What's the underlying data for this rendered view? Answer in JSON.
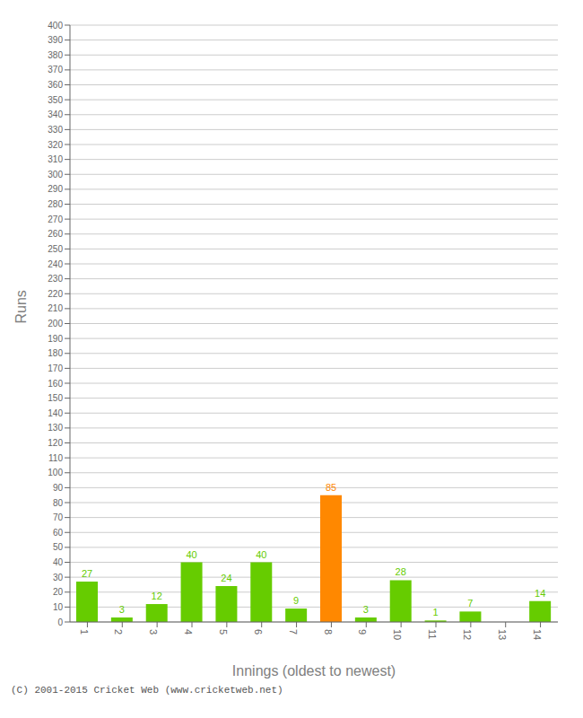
{
  "chart_data": {
    "type": "bar",
    "xlabel": "Innings (oldest to newest)",
    "ylabel": "Runs",
    "categories": [
      1,
      2,
      3,
      4,
      5,
      6,
      7,
      8,
      9,
      10,
      11,
      12,
      13,
      14
    ],
    "values": [
      27,
      3,
      12,
      40,
      24,
      40,
      9,
      85,
      3,
      28,
      1,
      7,
      0,
      14
    ],
    "colors": [
      "#66cc00",
      "#66cc00",
      "#66cc00",
      "#66cc00",
      "#66cc00",
      "#66cc00",
      "#66cc00",
      "#ff8800",
      "#66cc00",
      "#66cc00",
      "#66cc00",
      "#66cc00",
      "#66cc00",
      "#66cc00"
    ],
    "ylim": [
      0,
      400
    ],
    "yticks": [
      0,
      10,
      20,
      30,
      40,
      50,
      60,
      70,
      80,
      90,
      100,
      110,
      120,
      130,
      140,
      150,
      160,
      170,
      180,
      190,
      200,
      210,
      220,
      230,
      240,
      250,
      260,
      270,
      280,
      290,
      300,
      310,
      320,
      330,
      340,
      350,
      360,
      370,
      380,
      390,
      400
    ],
    "grid": true,
    "data_labels": true,
    "annotations": [
      "(C) 2001-2015 Cricket Web (www.cricketweb.net)"
    ]
  }
}
